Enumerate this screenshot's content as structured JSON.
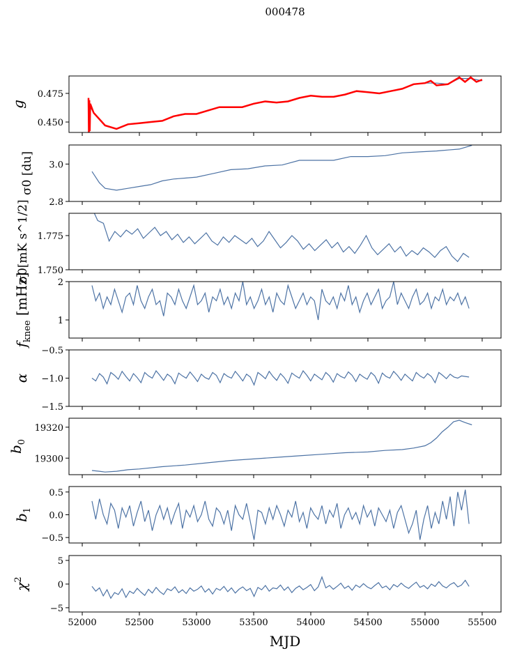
{
  "chart_data": {
    "type": "line",
    "title": "000478",
    "xlabel": "MJD",
    "xlim": [
      51884,
      55665
    ],
    "xticks": [
      52000,
      52500,
      53000,
      53500,
      54000,
      54500,
      55000,
      55500
    ],
    "line_color": "#4c72a4",
    "overlay_color": "#ff0000",
    "panels": [
      {
        "ylabel": "g",
        "ylim": [
          0.4409,
          0.4902
        ],
        "yticks": [
          0.45,
          0.475
        ],
        "ytick_labels": [
          "0.450",
          "0.475"
        ],
        "series": [
          {
            "name": "g",
            "x": [
              52055,
              52100,
              52200,
              52300,
              52400,
              52500,
              52600,
              52700,
              52800,
              52900,
              53000,
              53100,
              53200,
              53300,
              53400,
              53500,
              53600,
              53700,
              53800,
              53900,
              54000,
              54100,
              54200,
              54300,
              54400,
              54500,
              54600,
              54700,
              54800,
              54900,
              55000,
              55100,
              55200,
              55300,
              55400,
              55500
            ],
            "y": [
              0.466,
              0.458,
              0.447,
              0.444,
              0.448,
              0.449,
              0.45,
              0.451,
              0.455,
              0.457,
              0.457,
              0.46,
              0.463,
              0.463,
              0.463,
              0.466,
              0.468,
              0.467,
              0.468,
              0.471,
              0.473,
              0.472,
              0.472,
              0.474,
              0.477,
              0.476,
              0.475,
              0.477,
              0.479,
              0.483,
              0.484,
              0.484,
              0.483,
              0.488,
              0.488,
              0.486
            ]
          },
          {
            "name": "g_fit",
            "overlay": true,
            "x": [
              52055,
              52058,
              52062,
              52066,
              52070,
              52100,
              52200,
              52300,
              52400,
              52500,
              52600,
              52700,
              52800,
              52900,
              53000,
              53100,
              53200,
              53300,
              53400,
              53500,
              53600,
              53700,
              53800,
              53900,
              54000,
              54100,
              54200,
              54300,
              54400,
              54500,
              54600,
              54700,
              54800,
              54900,
              55000,
              55050,
              55100,
              55200,
              55300,
              55350,
              55400,
              55450,
              55500
            ],
            "y": [
              0.471,
              0.441,
              0.469,
              0.442,
              0.466,
              0.458,
              0.447,
              0.444,
              0.448,
              0.449,
              0.45,
              0.451,
              0.455,
              0.457,
              0.457,
              0.46,
              0.463,
              0.463,
              0.463,
              0.466,
              0.468,
              0.467,
              0.468,
              0.471,
              0.473,
              0.472,
              0.472,
              0.474,
              0.477,
              0.476,
              0.475,
              0.477,
              0.479,
              0.483,
              0.484,
              0.486,
              0.482,
              0.483,
              0.489,
              0.485,
              0.489,
              0.485,
              0.487
            ]
          }
        ]
      },
      {
        "ylabel": "σ0 [du]",
        "ylim": [
          2.8,
          3.102
        ],
        "yticks": [
          2.8,
          3.0
        ],
        "ytick_labels": [
          "2.8",
          "3.0"
        ],
        "series": [
          {
            "name": "sigma0_du",
            "x": [
              52085,
              52150,
              52200,
              52300,
              52400,
              52500,
              52600,
              52700,
              52800,
              52900,
              53000,
              53150,
              53300,
              53450,
              53600,
              53750,
              53900,
              54050,
              54200,
              54350,
              54500,
              54650,
              54800,
              54950,
              55100,
              55200,
              55300,
              55410
            ],
            "y": [
              2.96,
              2.9,
              2.87,
              2.86,
              2.87,
              2.88,
              2.89,
              2.91,
              2.92,
              2.925,
              2.93,
              2.95,
              2.97,
              2.975,
              2.99,
              2.995,
              3.02,
              3.02,
              3.02,
              3.04,
              3.04,
              3.045,
              3.06,
              3.065,
              3.07,
              3.075,
              3.08,
              3.1
            ]
          }
        ]
      },
      {
        "ylabel": "σ0[mK s^1/2]",
        "ylim": [
          1.75,
          1.7913
        ],
        "yticks": [
          1.75,
          1.775
        ],
        "ytick_labels": [
          "1.750",
          "1.775"
        ],
        "series": [
          {
            "name": "sigma0_mK",
            "x_start": 52085,
            "x_step": 50,
            "y": [
              1.795,
              1.786,
              1.784,
              1.771,
              1.778,
              1.774,
              1.779,
              1.776,
              1.78,
              1.773,
              1.777,
              1.781,
              1.775,
              1.778,
              1.772,
              1.776,
              1.77,
              1.774,
              1.769,
              1.773,
              1.777,
              1.771,
              1.768,
              1.774,
              1.77,
              1.775,
              1.772,
              1.769,
              1.773,
              1.767,
              1.771,
              1.778,
              1.772,
              1.766,
              1.77,
              1.775,
              1.771,
              1.765,
              1.769,
              1.764,
              1.768,
              1.772,
              1.766,
              1.77,
              1.763,
              1.767,
              1.762,
              1.768,
              1.775,
              1.766,
              1.761,
              1.765,
              1.769,
              1.763,
              1.767,
              1.76,
              1.764,
              1.761,
              1.766,
              1.763,
              1.759,
              1.764,
              1.767,
              1.76,
              1.756,
              1.762,
              1.759
            ]
          }
        ]
      },
      {
        "ylabel": "f_knee [mHz]",
        "ylim": [
          0.527,
          2.0
        ],
        "yticks": [
          1,
          2
        ],
        "ytick_labels": [
          "1",
          "2"
        ],
        "series": [
          {
            "name": "fknee",
            "x_start": 52085,
            "x_step": 33,
            "y": [
              1.9,
              1.5,
              1.7,
              1.3,
              1.6,
              1.4,
              1.8,
              1.5,
              1.2,
              1.6,
              1.7,
              1.4,
              1.9,
              1.5,
              1.3,
              1.6,
              1.8,
              1.4,
              1.5,
              1.1,
              1.7,
              1.6,
              1.4,
              1.8,
              1.5,
              1.3,
              1.6,
              1.9,
              1.4,
              1.5,
              1.7,
              1.2,
              1.6,
              1.5,
              1.8,
              1.4,
              1.6,
              1.3,
              1.7,
              1.5,
              2.0,
              1.4,
              1.6,
              1.3,
              1.5,
              1.8,
              1.4,
              1.6,
              1.2,
              1.7,
              1.5,
              1.4,
              1.9,
              1.6,
              1.3,
              1.5,
              1.7,
              1.4,
              1.6,
              1.5,
              1.0,
              1.8,
              1.5,
              1.4,
              1.6,
              1.3,
              1.7,
              1.5,
              1.9,
              1.4,
              1.6,
              1.2,
              1.5,
              1.7,
              1.4,
              1.6,
              1.8,
              1.3,
              1.5,
              1.6,
              2.0,
              1.4,
              1.7,
              1.5,
              1.3,
              1.6,
              1.8,
              1.4,
              1.5,
              1.7,
              1.3,
              1.6,
              1.5,
              1.8,
              1.4,
              1.6,
              1.5,
              1.7,
              1.4,
              1.6,
              1.3
            ]
          }
        ]
      },
      {
        "ylabel": "α",
        "ylim": [
          -1.5,
          -0.5
        ],
        "yticks": [
          -1.5,
          -1.0,
          -0.5
        ],
        "ytick_labels": [
          "−1.5",
          "−1.0",
          "−0.5"
        ],
        "series": [
          {
            "name": "alpha",
            "x_start": 52085,
            "x_step": 33,
            "y": [
              -1.0,
              -1.05,
              -0.92,
              -0.98,
              -1.1,
              -0.9,
              -0.95,
              -1.02,
              -0.88,
              -0.97,
              -1.05,
              -0.92,
              -0.99,
              -1.08,
              -0.9,
              -0.96,
              -1.0,
              -0.87,
              -0.95,
              -1.04,
              -0.93,
              -0.98,
              -1.1,
              -0.91,
              -0.96,
              -1.0,
              -0.89,
              -0.97,
              -1.06,
              -0.93,
              -0.99,
              -1.02,
              -0.9,
              -0.95,
              -1.08,
              -0.92,
              -0.97,
              -1.0,
              -0.88,
              -0.96,
              -1.05,
              -0.93,
              -0.98,
              -1.12,
              -0.9,
              -0.95,
              -1.01,
              -0.88,
              -0.97,
              -1.04,
              -0.92,
              -0.99,
              -1.09,
              -0.91,
              -0.96,
              -1.0,
              -0.87,
              -0.95,
              -1.05,
              -0.93,
              -0.98,
              -1.03,
              -0.9,
              -0.96,
              -1.07,
              -0.92,
              -0.97,
              -1.0,
              -0.89,
              -0.95,
              -1.06,
              -0.93,
              -0.98,
              -1.02,
              -0.9,
              -0.96,
              -1.09,
              -0.91,
              -0.97,
              -1.0,
              -0.88,
              -0.95,
              -1.04,
              -0.93,
              -0.99,
              -1.05,
              -0.9,
              -0.96,
              -1.0,
              -0.92,
              -0.97,
              -1.08,
              -0.9,
              -0.95,
              -1.01,
              -0.93,
              -0.98,
              -1.0,
              -0.96,
              -0.97,
              -0.98
            ]
          }
        ]
      },
      {
        "ylabel": "b0",
        "ylim": [
          19289.3,
          19325.8
        ],
        "yticks": [
          19300,
          19320
        ],
        "ytick_labels": [
          "19300",
          "19320"
        ],
        "series": [
          {
            "name": "b0",
            "x": [
              52085,
              52150,
              52200,
              52300,
              52400,
              52500,
              52700,
              52900,
              53100,
              53300,
              53500,
              53700,
              53900,
              54100,
              54300,
              54500,
              54650,
              54800,
              54900,
              55000,
              55050,
              55100,
              55150,
              55200,
              55250,
              55300,
              55350,
              55410
            ],
            "y": [
              19292,
              19291.5,
              19291,
              19291.5,
              19292.5,
              19293,
              19294.5,
              19295.5,
              19297,
              19298.5,
              19299.5,
              19300.5,
              19301.5,
              19302.5,
              19303.5,
              19304,
              19305,
              19305.5,
              19306.5,
              19308,
              19310,
              19313,
              19317,
              19320,
              19323.5,
              19324.5,
              19323,
              19321.5
            ]
          }
        ]
      },
      {
        "ylabel": "b1",
        "ylim": [
          -0.62,
          0.62
        ],
        "yticks": [
          -0.5,
          0.0,
          0.5
        ],
        "ytick_labels": [
          "−0.5",
          "0.0",
          "0.5"
        ],
        "series": [
          {
            "name": "b1",
            "x_start": 52085,
            "x_step": 33,
            "y": [
              0.3,
              -0.1,
              0.35,
              0.0,
              -0.2,
              0.25,
              0.1,
              -0.3,
              0.15,
              -0.05,
              0.2,
              -0.25,
              0.05,
              0.3,
              -0.15,
              0.1,
              -0.35,
              0.0,
              0.2,
              -0.1,
              0.15,
              -0.2,
              0.05,
              0.25,
              -0.3,
              0.1,
              -0.05,
              0.2,
              -0.15,
              0.0,
              0.3,
              -0.1,
              -0.25,
              0.15,
              0.05,
              -0.2,
              0.1,
              -0.35,
              0.2,
              0.0,
              -0.1,
              0.25,
              -0.15,
              -0.55,
              0.1,
              0.05,
              -0.2,
              0.15,
              -0.1,
              0.2,
              0.0,
              -0.25,
              0.1,
              -0.05,
              0.3,
              -0.15,
              0.05,
              -0.3,
              0.15,
              0.0,
              -0.1,
              0.2,
              -0.2,
              0.1,
              -0.05,
              0.25,
              -0.3,
              0.0,
              0.15,
              -0.1,
              0.05,
              -0.2,
              0.2,
              -0.05,
              0.1,
              -0.25,
              0.15,
              0.0,
              -0.15,
              0.1,
              -0.3,
              0.05,
              0.2,
              -0.1,
              -0.4,
              -0.2,
              0.1,
              -0.55,
              -0.1,
              0.2,
              -0.3,
              0.05,
              -0.2,
              0.3,
              -0.1,
              0.4,
              -0.25,
              0.5,
              0.1,
              0.55,
              -0.2
            ]
          }
        ]
      },
      {
        "ylabel": "χ2",
        "ylim": [
          -5.9,
          6.03
        ],
        "yticks": [
          -5,
          0,
          5
        ],
        "ytick_labels": [
          "−5",
          "0",
          "5"
        ],
        "series": [
          {
            "name": "chi2",
            "x_start": 52085,
            "x_step": 33,
            "y": [
              -0.5,
              -1.5,
              -0.8,
              -2.5,
              -1.2,
              -3.0,
              -1.8,
              -2.2,
              -1.0,
              -2.8,
              -1.5,
              -2.0,
              -0.9,
              -1.7,
              -2.4,
              -1.1,
              -1.9,
              -0.7,
              -1.6,
              -2.2,
              -1.0,
              -1.4,
              -0.6,
              -1.8,
              -1.2,
              -2.0,
              -0.8,
              -1.5,
              -1.1,
              -0.4,
              -1.7,
              -1.0,
              -2.1,
              -0.9,
              -1.3,
              -0.5,
              -1.6,
              -0.8,
              -1.9,
              -1.1,
              -0.6,
              -1.4,
              -0.9,
              -2.6,
              -0.7,
              -1.2,
              -0.3,
              -1.5,
              -0.8,
              -1.0,
              -0.2,
              -1.3,
              -0.6,
              -1.8,
              -0.9,
              -0.4,
              -1.2,
              -0.7,
              -0.1,
              -1.4,
              -0.6,
              1.5,
              -0.8,
              -0.3,
              -1.1,
              -0.5,
              0.2,
              -0.9,
              -0.4,
              -1.3,
              -0.2,
              -0.7,
              0.1,
              -0.6,
              -1.0,
              -0.3,
              0.3,
              -0.8,
              -0.4,
              -1.2,
              -0.1,
              -0.6,
              0.2,
              -0.5,
              -0.9,
              -0.2,
              0.4,
              -0.7,
              -0.3,
              -1.0,
              0.0,
              -0.5,
              0.5,
              -0.4,
              -0.8,
              -0.1,
              0.3,
              -0.6,
              -0.2,
              0.8,
              -0.5
            ]
          }
        ]
      }
    ]
  }
}
